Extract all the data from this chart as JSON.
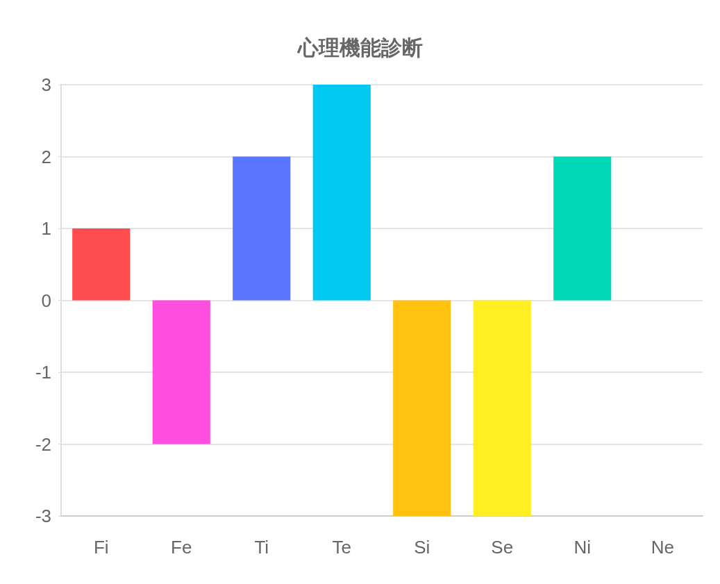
{
  "chart_data": {
    "type": "bar",
    "title": "心理機能診断",
    "categories": [
      "Fi",
      "Fe",
      "Ti",
      "Te",
      "Si",
      "Se",
      "Ni",
      "Ne"
    ],
    "values": [
      1,
      -2,
      2,
      3,
      -3,
      -3,
      2,
      0
    ],
    "colors": [
      "#ff4d4f",
      "#ff4fe0",
      "#5a75ff",
      "#00c8f2",
      "#ffc20e",
      "#ffee22",
      "#00d9b8",
      "#ff9f40"
    ],
    "ylim": [
      -3,
      3
    ],
    "yticks": [
      -3,
      -2,
      -1,
      0,
      1,
      2,
      3
    ],
    "grid": "y"
  }
}
